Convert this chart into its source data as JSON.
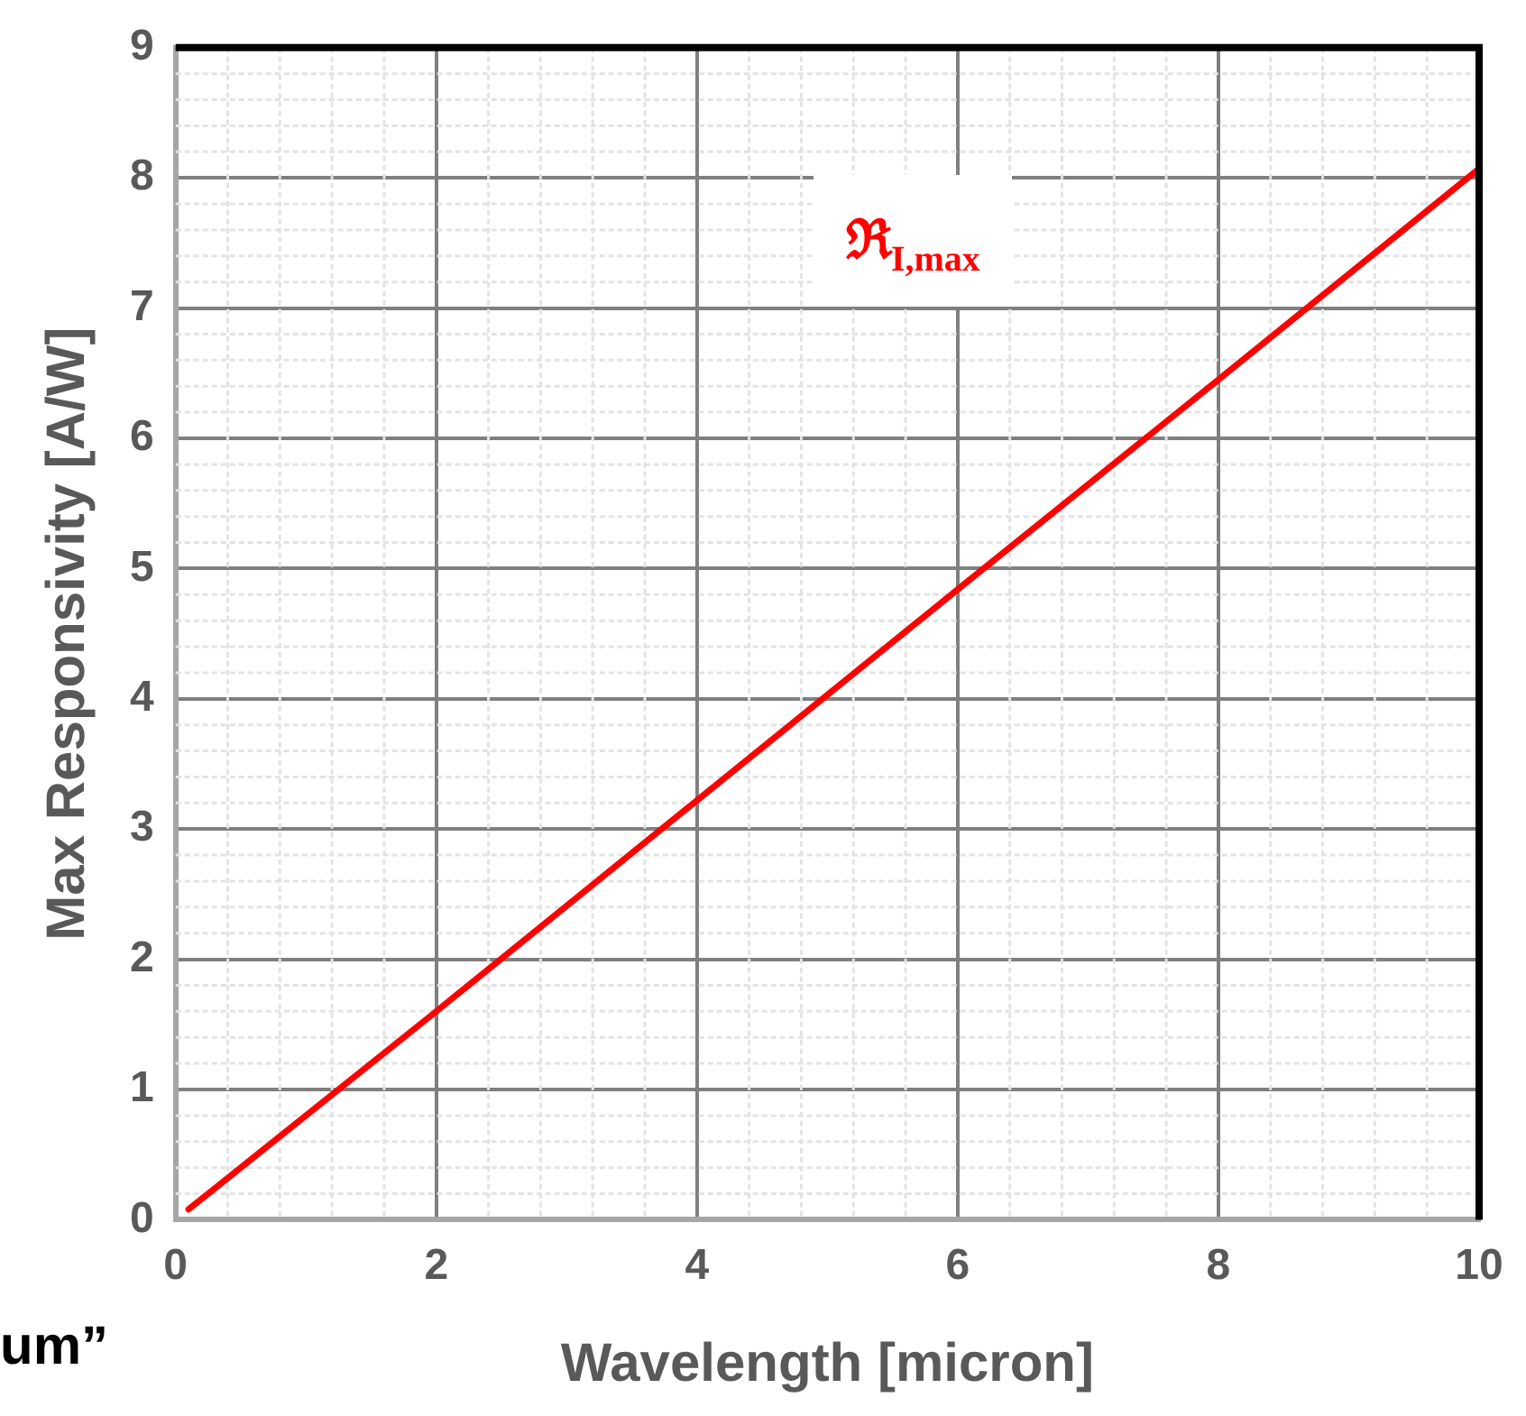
{
  "chart_data": {
    "type": "line",
    "xlabel": "Wavelength [micron]",
    "ylabel": "Max Responsivity [A/W]",
    "x": [
      0.1,
      2,
      4,
      6,
      8,
      10
    ],
    "series": [
      {
        "name": "ℜ$_{I,max}$",
        "color": "#ff0000",
        "values": [
          0.08,
          1.6,
          3.22,
          4.84,
          6.45,
          8.07
        ]
      }
    ],
    "xlim": [
      0,
      10
    ],
    "xticks": [
      0,
      2,
      4,
      6,
      8,
      10
    ],
    "ylim": [
      0,
      9
    ],
    "yticks": [
      0,
      1,
      2,
      3,
      4,
      5,
      6,
      7,
      8,
      9
    ],
    "grid": true,
    "legend": false,
    "marker": "none",
    "line_style": "solid",
    "annotations": [
      "um”"
    ]
  }
}
